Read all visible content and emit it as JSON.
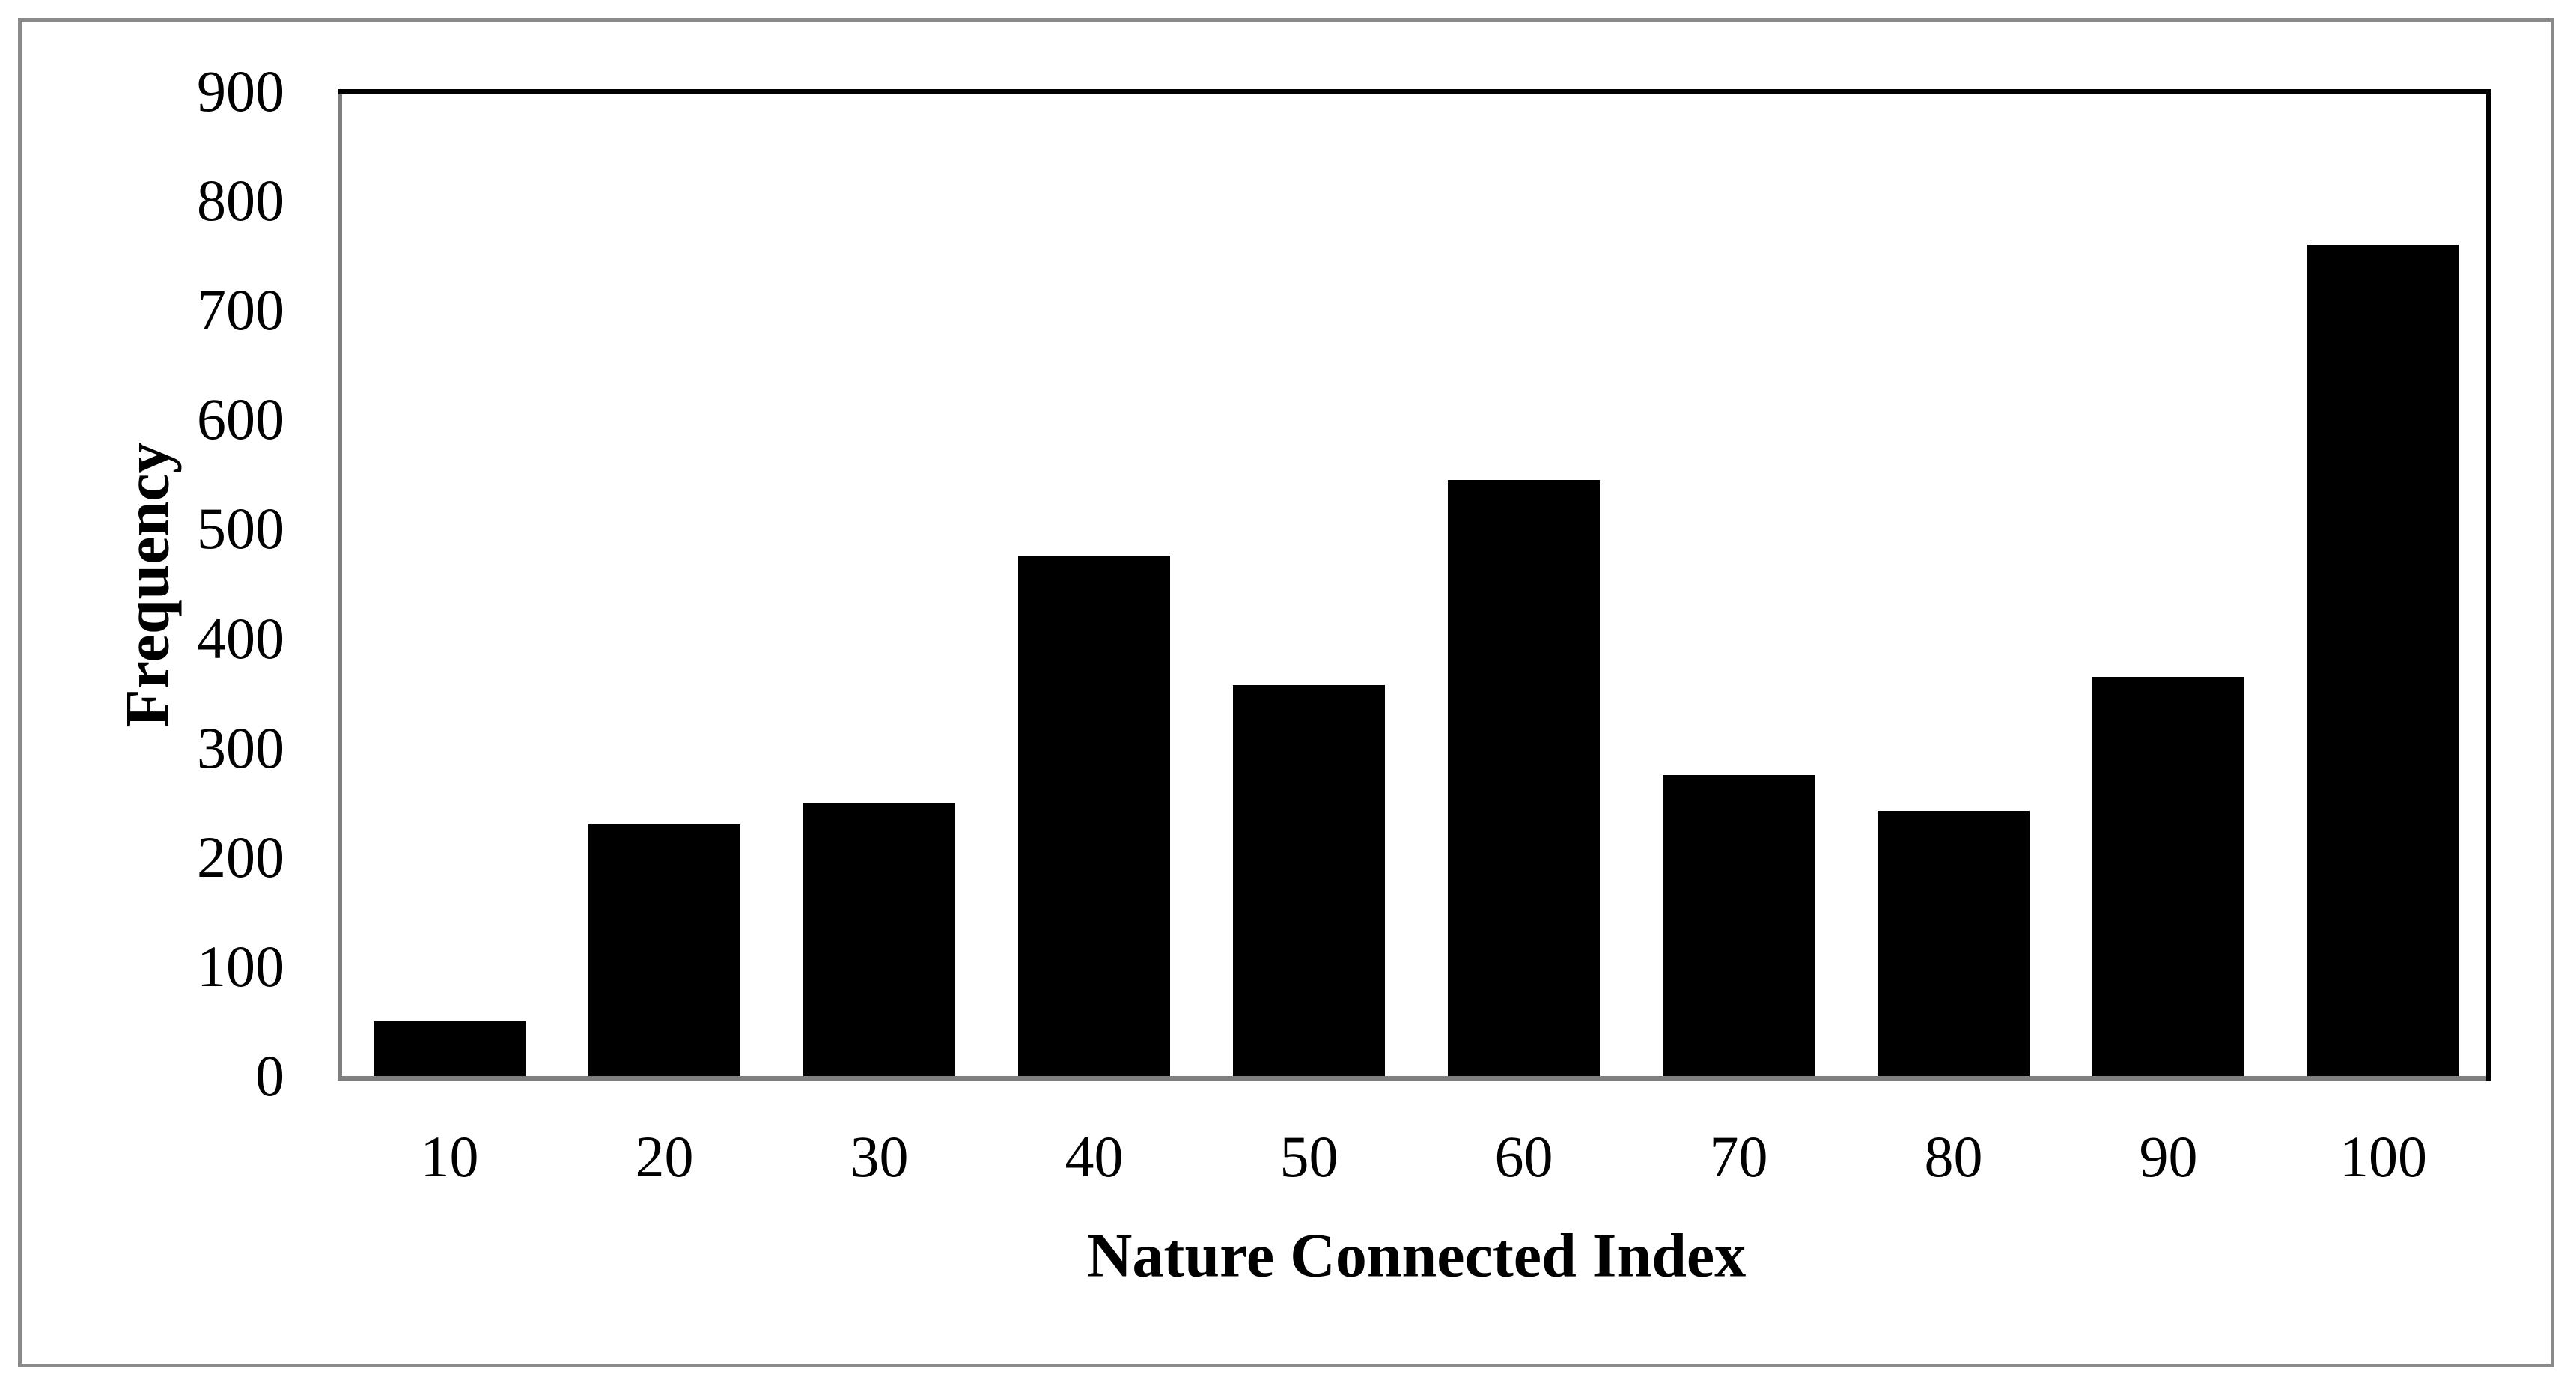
{
  "figure": {
    "background": "#ffffff",
    "outer_border_color": "#8a8a8a",
    "axis_line_color": "#7f7f7f",
    "plot_border_color": "#000000"
  },
  "chart_data": {
    "type": "bar",
    "title": "",
    "xlabel": "Nature Connected Index",
    "ylabel": "Frequency",
    "categories": [
      "10",
      "20",
      "30",
      "40",
      "50",
      "60",
      "70",
      "80",
      "90",
      "100"
    ],
    "values": [
      50,
      230,
      250,
      475,
      357,
      545,
      275,
      242,
      365,
      760
    ],
    "bar_color": "#000000",
    "ylim": [
      0,
      900
    ],
    "yticks": [
      0,
      100,
      200,
      300,
      400,
      500,
      600,
      700,
      800,
      900
    ],
    "grid": false,
    "legend": false
  }
}
